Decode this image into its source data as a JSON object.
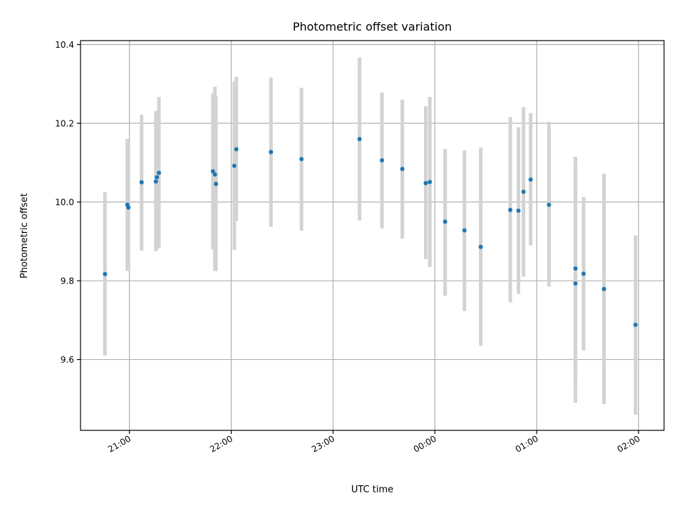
{
  "chart_data": {
    "type": "scatter",
    "title": "Photometric offset variation",
    "xlabel": "UTC time",
    "ylabel": "Photometric offset",
    "x_unit": "UTC time (hours, past midnight continues above 24)",
    "xlim": [
      20.52,
      26.25
    ],
    "ylim": [
      9.42,
      10.41
    ],
    "xticks": [
      21,
      22,
      23,
      24,
      25,
      26
    ],
    "xtick_labels": [
      "21:00",
      "22:00",
      "23:00",
      "00:00",
      "01:00",
      "02:00"
    ],
    "yticks": [
      9.6,
      9.8,
      10.0,
      10.2,
      10.4
    ],
    "ytick_labels": [
      "9.6",
      "9.8",
      "10.0",
      "10.2",
      "10.4"
    ],
    "grid": true,
    "point_color": "#1f77b4",
    "errorbar_color": "#d3d3d3",
    "points": [
      {
        "time": 20.76,
        "value": 9.817,
        "low": 9.61,
        "high": 10.025
      },
      {
        "time": 20.98,
        "value": 9.993,
        "low": 9.825,
        "high": 10.16
      },
      {
        "time": 20.99,
        "value": 9.986,
        "low": 9.825,
        "high": 10.15
      },
      {
        "time": 21.12,
        "value": 10.05,
        "low": 9.877,
        "high": 10.222
      },
      {
        "time": 21.26,
        "value": 10.052,
        "low": 9.875,
        "high": 10.23
      },
      {
        "time": 21.27,
        "value": 10.063,
        "low": 9.88,
        "high": 10.232
      },
      {
        "time": 21.29,
        "value": 10.074,
        "low": 9.883,
        "high": 10.267
      },
      {
        "time": 21.82,
        "value": 10.078,
        "low": 9.88,
        "high": 10.276
      },
      {
        "time": 21.84,
        "value": 10.07,
        "low": 9.825,
        "high": 10.293
      },
      {
        "time": 21.85,
        "value": 10.046,
        "low": 9.825,
        "high": 10.27
      },
      {
        "time": 22.03,
        "value": 10.092,
        "low": 9.878,
        "high": 10.306
      },
      {
        "time": 22.05,
        "value": 10.134,
        "low": 9.952,
        "high": 10.318
      },
      {
        "time": 22.39,
        "value": 10.127,
        "low": 9.937,
        "high": 10.316
      },
      {
        "time": 22.69,
        "value": 10.109,
        "low": 9.927,
        "high": 10.29
      },
      {
        "time": 23.26,
        "value": 10.16,
        "low": 9.953,
        "high": 10.367
      },
      {
        "time": 23.48,
        "value": 10.106,
        "low": 9.933,
        "high": 10.278
      },
      {
        "time": 23.68,
        "value": 10.084,
        "low": 9.907,
        "high": 10.26
      },
      {
        "time": 23.91,
        "value": 10.048,
        "low": 9.855,
        "high": 10.243
      },
      {
        "time": 23.95,
        "value": 10.051,
        "low": 9.835,
        "high": 10.267
      },
      {
        "time": 24.1,
        "value": 9.95,
        "low": 9.762,
        "high": 10.135
      },
      {
        "time": 24.29,
        "value": 9.928,
        "low": 9.723,
        "high": 10.131
      },
      {
        "time": 24.45,
        "value": 9.886,
        "low": 9.635,
        "high": 10.138
      },
      {
        "time": 24.74,
        "value": 9.98,
        "low": 9.745,
        "high": 10.216
      },
      {
        "time": 24.82,
        "value": 9.978,
        "low": 9.767,
        "high": 10.19
      },
      {
        "time": 24.87,
        "value": 10.026,
        "low": 9.81,
        "high": 10.241
      },
      {
        "time": 24.94,
        "value": 10.057,
        "low": 9.89,
        "high": 10.226
      },
      {
        "time": 25.12,
        "value": 9.993,
        "low": 9.785,
        "high": 10.204
      },
      {
        "time": 25.38,
        "value": 9.831,
        "low": 9.55,
        "high": 10.115
      },
      {
        "time": 25.38,
        "value": 9.793,
        "low": 9.49,
        "high": 10.092
      },
      {
        "time": 25.46,
        "value": 9.818,
        "low": 9.623,
        "high": 10.013
      },
      {
        "time": 25.66,
        "value": 9.779,
        "low": 9.487,
        "high": 10.072
      },
      {
        "time": 25.97,
        "value": 9.688,
        "low": 9.46,
        "high": 9.915
      }
    ]
  }
}
